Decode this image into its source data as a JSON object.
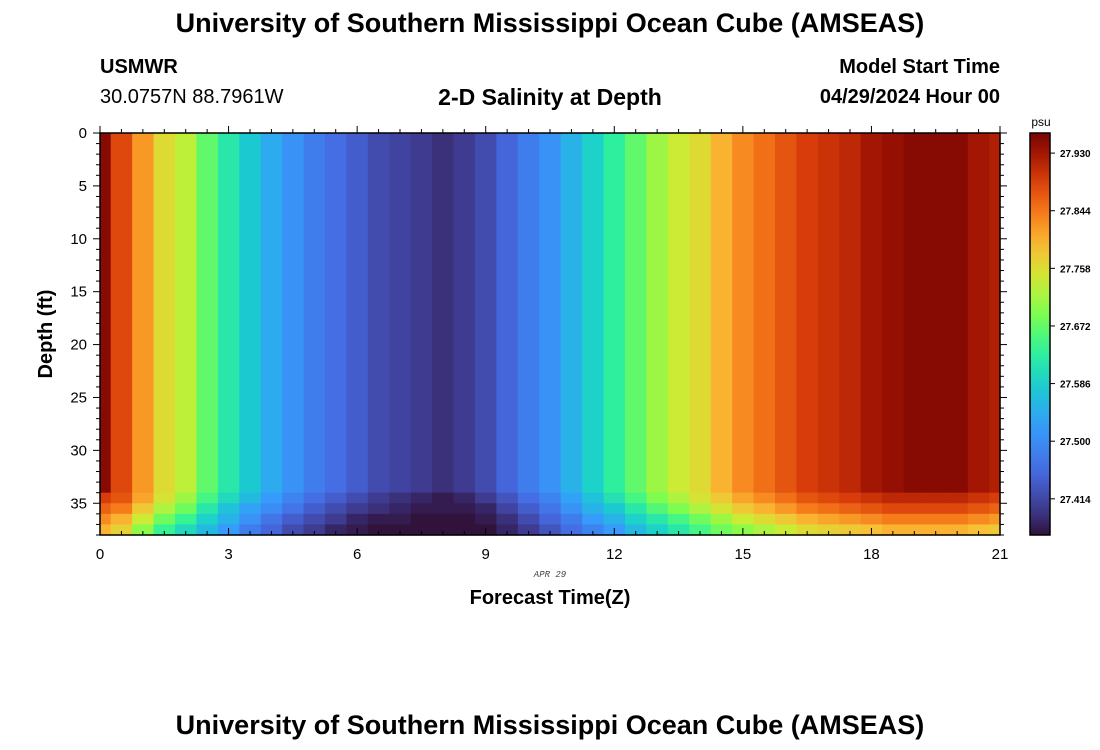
{
  "page": {
    "title": "University of Southern Mississippi Ocean Cube (AMSEAS)",
    "footer_title": "University of Southern Mississippi Ocean Cube (AMSEAS)",
    "station": "USMWR",
    "coords": "30.0757N  88.7961W",
    "subtitle": "2-D Salinity at Depth",
    "model_start_label": "Model Start Time",
    "model_start_value": "04/29/2024 Hour 00"
  },
  "chart_data": {
    "type": "heatmap",
    "title": "2-D Salinity at Depth",
    "xlabel": "Forecast Time(Z)",
    "ylabel": "Depth (ft)",
    "date_label": "APR 29",
    "xlim": [
      0,
      21
    ],
    "ylim": [
      0,
      38
    ],
    "x_ticks": [
      0,
      3,
      6,
      9,
      12,
      15,
      18,
      21
    ],
    "y_ticks": [
      0,
      5,
      10,
      15,
      20,
      25,
      30,
      35
    ],
    "colorbar": {
      "unit": "psu",
      "range": [
        27.36,
        27.96
      ],
      "ticks": [
        27.414,
        27.5,
        27.586,
        27.672,
        27.758,
        27.844,
        27.93
      ]
    },
    "columns_hours": [
      0,
      0.5,
      1,
      1.5,
      2,
      2.5,
      3,
      3.5,
      4,
      4.5,
      5,
      5.5,
      6,
      6.5,
      7,
      7.5,
      8,
      8.5,
      9,
      9.5,
      10,
      10.5,
      11,
      11.5,
      12,
      12.5,
      13,
      13.5,
      14,
      14.5,
      15,
      15.5,
      16,
      16.5,
      17,
      17.5,
      18,
      18.5,
      19,
      19.5,
      20,
      20.5,
      21
    ],
    "upper_salinity": [
      27.95,
      27.88,
      27.82,
      27.76,
      27.73,
      27.67,
      27.62,
      27.58,
      27.54,
      27.51,
      27.48,
      27.46,
      27.44,
      27.42,
      27.41,
      27.4,
      27.39,
      27.4,
      27.42,
      27.45,
      27.48,
      27.51,
      27.55,
      27.59,
      27.63,
      27.67,
      27.71,
      27.74,
      27.76,
      27.8,
      27.83,
      27.85,
      27.87,
      27.89,
      27.9,
      27.91,
      27.93,
      27.94,
      27.95,
      27.95,
      27.95,
      27.93,
      27.92
    ],
    "bottom_rows": [
      {
        "depth_ft": 34.5,
        "salinity": [
          27.89,
          27.87,
          27.81,
          27.75,
          27.71,
          27.65,
          27.6,
          27.56,
          27.52,
          27.49,
          27.46,
          27.44,
          27.42,
          27.4,
          27.39,
          27.38,
          27.37,
          27.38,
          27.4,
          27.43,
          27.46,
          27.49,
          27.53,
          27.57,
          27.61,
          27.65,
          27.69,
          27.72,
          27.75,
          27.78,
          27.81,
          27.83,
          27.85,
          27.87,
          27.88,
          27.89,
          27.9,
          27.91,
          27.91,
          27.91,
          27.91,
          27.9,
          27.89
        ]
      },
      {
        "depth_ft": 35.5,
        "salinity": [
          27.86,
          27.84,
          27.78,
          27.72,
          27.68,
          27.62,
          27.57,
          27.53,
          27.5,
          27.47,
          27.44,
          27.42,
          27.4,
          27.39,
          27.38,
          27.37,
          27.37,
          27.37,
          27.38,
          27.41,
          27.44,
          27.47,
          27.51,
          27.55,
          27.58,
          27.62,
          27.66,
          27.69,
          27.72,
          27.75,
          27.78,
          27.8,
          27.82,
          27.84,
          27.85,
          27.86,
          27.87,
          27.88,
          27.88,
          27.88,
          27.88,
          27.87,
          27.86
        ]
      },
      {
        "depth_ft": 36.5,
        "salinity": [
          27.83,
          27.8,
          27.74,
          27.68,
          27.64,
          27.59,
          27.55,
          27.51,
          27.47,
          27.44,
          27.42,
          27.4,
          27.38,
          27.37,
          27.37,
          27.36,
          27.36,
          27.36,
          27.37,
          27.39,
          27.42,
          27.45,
          27.48,
          27.52,
          27.55,
          27.59,
          27.62,
          27.65,
          27.68,
          27.71,
          27.74,
          27.76,
          27.78,
          27.8,
          27.81,
          27.82,
          27.83,
          27.84,
          27.84,
          27.84,
          27.84,
          27.83,
          27.82
        ]
      },
      {
        "depth_ft": 37.5,
        "salinity": [
          27.8,
          27.77,
          27.7,
          27.64,
          27.6,
          27.56,
          27.52,
          27.48,
          27.45,
          27.42,
          27.4,
          27.38,
          27.37,
          27.36,
          27.36,
          27.36,
          27.36,
          27.36,
          27.36,
          27.38,
          27.4,
          27.43,
          27.46,
          27.49,
          27.52,
          27.56,
          27.59,
          27.62,
          27.65,
          27.68,
          27.7,
          27.72,
          27.74,
          27.76,
          27.77,
          27.78,
          27.79,
          27.8,
          27.8,
          27.8,
          27.8,
          27.79,
          27.78
        ]
      }
    ]
  }
}
